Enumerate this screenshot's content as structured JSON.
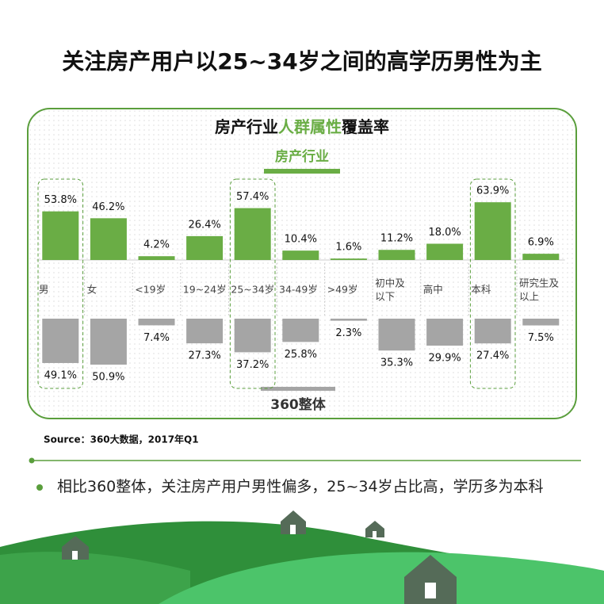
{
  "title": "关注房产用户以25~34岁之间的高学历男性为主",
  "chart_data": {
    "type": "diverging-bar",
    "title": [
      "房产行业",
      "人群属性",
      "覆盖率"
    ],
    "categories": [
      "男",
      "女",
      "<19岁",
      "19~24岁",
      "25~34岁",
      "34-49岁",
      ">49岁",
      [
        "初中及",
        "以下"
      ],
      "高中",
      "本科",
      [
        "研究生及",
        "以上"
      ]
    ],
    "series": [
      {
        "name": "房产行业",
        "color": "#6aad45",
        "values": [
          53.8,
          46.2,
          4.2,
          26.4,
          57.4,
          10.4,
          1.6,
          11.2,
          18.0,
          63.9,
          6.9
        ],
        "value_labels": [
          "53.8%",
          "46.2%",
          "4.2%",
          "26.4%",
          "57.4%",
          "10.4%",
          "1.6%",
          "11.2%",
          "18.0%",
          "63.9%",
          "6.9%"
        ]
      },
      {
        "name": "360整体",
        "color": "#a5a5a5",
        "values": [
          49.1,
          50.9,
          7.4,
          27.3,
          37.2,
          25.8,
          2.3,
          35.3,
          29.9,
          27.4,
          7.5
        ],
        "value_labels": [
          "49.1%",
          "50.9%",
          "7.4%",
          "27.3%",
          "37.2%",
          "25.8%",
          "2.3%",
          "35.3%",
          "29.9%",
          "27.4%",
          "7.5%"
        ]
      }
    ],
    "highlight": [
      0,
      4,
      9
    ]
  },
  "source": "Source：360大数据，2017年Q1",
  "bullet": "相比360整体，关注房产用户男性偏多，25~34岁占比高，学历多为本科"
}
